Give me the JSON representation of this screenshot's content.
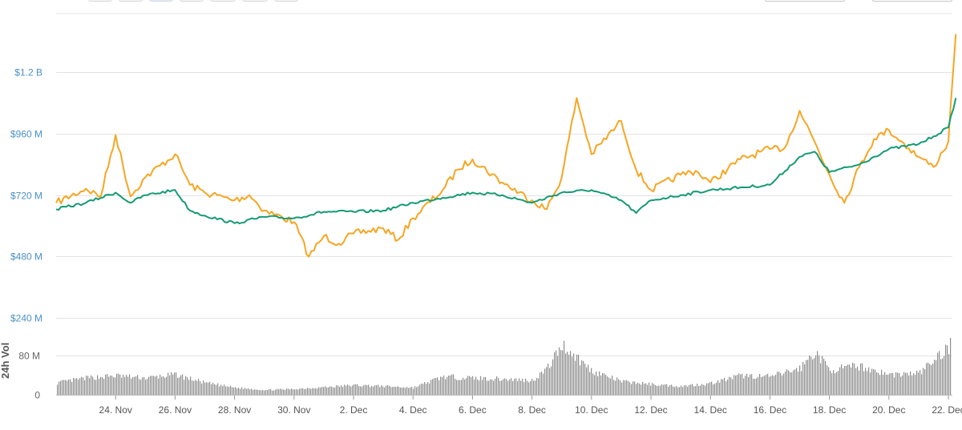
{
  "toolbar": {
    "range_buttons": [
      "",
      "",
      "",
      "",
      "",
      "",
      ""
    ],
    "active_index": 2,
    "date_from": "",
    "date_to": ""
  },
  "colors": {
    "series_orange": "#f5a623",
    "series_green": "#159a73",
    "volume_bar": "#8e8e8e",
    "grid": "#e3e3e3",
    "y_axis_text": "#4a90c8"
  },
  "chart_data": {
    "type": "line",
    "x_tick_labels": [
      "24. Nov",
      "26. Nov",
      "28. Nov",
      "30. Nov",
      "2. Dec",
      "4. Dec",
      "6. Dec",
      "8. Dec",
      "10. Dec",
      "12. Dec",
      "14. Dec",
      "16. Dec",
      "18. Dec",
      "20. Dec",
      "22. Dec"
    ],
    "x_range": [
      "2017-11-22",
      "2017-12-22"
    ],
    "y_tick_labels": [
      "$240 M",
      "$480 M",
      "$720 M",
      "$960 M",
      "$1.2 B"
    ],
    "y_ticks": [
      240,
      480,
      720,
      960,
      1200
    ],
    "ylim": [
      240,
      1430
    ],
    "y_unit": "M",
    "series": [
      {
        "color": "#f5a623",
        "x": [
          "2017-11-22",
          "2017-11-23",
          "2017-11-23T12:00",
          "2017-11-24",
          "2017-11-24T12:00",
          "2017-11-25",
          "2017-11-26",
          "2017-11-26T12:00",
          "2017-11-27",
          "2017-11-28",
          "2017-11-28T12:00",
          "2017-11-29",
          "2017-11-30",
          "2017-11-30T12:00",
          "2017-12-01",
          "2017-12-01T12:00",
          "2017-12-02",
          "2017-12-03",
          "2017-12-03T12:00",
          "2017-12-04",
          "2017-12-05",
          "2017-12-05T12:00",
          "2017-12-06",
          "2017-12-07",
          "2017-12-08",
          "2017-12-08T12:00",
          "2017-12-09",
          "2017-12-09T12:00",
          "2017-12-10",
          "2017-12-11",
          "2017-12-11T12:00",
          "2017-12-12",
          "2017-12-13",
          "2017-12-13T12:00",
          "2017-12-14",
          "2017-12-15",
          "2017-12-16",
          "2017-12-16T12:00",
          "2017-12-17",
          "2017-12-17T12:00",
          "2017-12-18",
          "2017-12-18T12:00",
          "2017-12-19",
          "2017-12-19T12:00",
          "2017-12-20",
          "2017-12-21",
          "2017-12-21T12:00",
          "2017-12-22",
          "2017-12-22T06:00"
        ],
        "values": [
          690,
          745,
          715,
          955,
          715,
          790,
          880,
          760,
          730,
          700,
          720,
          660,
          615,
          480,
          560,
          530,
          570,
          590,
          545,
          630,
          740,
          820,
          860,
          770,
          700,
          665,
          790,
          1100,
          880,
          1010,
          820,
          740,
          800,
          815,
          770,
          860,
          900,
          905,
          1050,
          930,
          800,
          690,
          830,
          940,
          975,
          870,
          830,
          930,
          1350
        ]
      },
      {
        "color": "#159a73",
        "x": [
          "2017-11-22",
          "2017-11-23",
          "2017-11-24",
          "2017-11-24T12:00",
          "2017-11-25",
          "2017-11-26",
          "2017-11-26T12:00",
          "2017-11-27",
          "2017-11-28",
          "2017-11-29",
          "2017-11-30",
          "2017-12-01",
          "2017-12-02",
          "2017-12-03",
          "2017-12-04",
          "2017-12-05",
          "2017-12-06",
          "2017-12-07",
          "2017-12-08",
          "2017-12-09",
          "2017-12-10",
          "2017-12-11",
          "2017-12-11T12:00",
          "2017-12-12",
          "2017-12-13",
          "2017-12-14",
          "2017-12-15",
          "2017-12-16",
          "2017-12-17",
          "2017-12-17T12:00",
          "2017-12-18",
          "2017-12-19",
          "2017-12-19T12:00",
          "2017-12-20",
          "2017-12-21",
          "2017-12-21T12:00",
          "2017-12-22",
          "2017-12-22T06:00"
        ],
        "values": [
          665,
          690,
          730,
          690,
          720,
          740,
          660,
          640,
          610,
          635,
          630,
          655,
          655,
          660,
          690,
          710,
          730,
          720,
          690,
          730,
          740,
          700,
          650,
          700,
          720,
          740,
          750,
          760,
          870,
          890,
          810,
          840,
          870,
          900,
          920,
          950,
          985,
          1100
        ]
      }
    ],
    "volume": {
      "ylabel": "24h Vol",
      "y_tick_labels": [
        "0",
        "80 M"
      ],
      "y_ticks": [
        0,
        80
      ],
      "ylim": [
        0,
        135
      ],
      "x": [
        "2017-11-22",
        "2017-11-23",
        "2017-11-24",
        "2017-11-25",
        "2017-11-26",
        "2017-11-27",
        "2017-11-28",
        "2017-11-29",
        "2017-11-30",
        "2017-12-01",
        "2017-12-02",
        "2017-12-03",
        "2017-12-04",
        "2017-12-05",
        "2017-12-06",
        "2017-12-07",
        "2017-12-08",
        "2017-12-08T12:00",
        "2017-12-09",
        "2017-12-10",
        "2017-12-11",
        "2017-12-12",
        "2017-12-13",
        "2017-12-14",
        "2017-12-15",
        "2017-12-16",
        "2017-12-17",
        "2017-12-17T12:00",
        "2017-12-18",
        "2017-12-19",
        "2017-12-20",
        "2017-12-21",
        "2017-12-22",
        "2017-12-22T06:00"
      ],
      "values": [
        25,
        35,
        40,
        35,
        42,
        25,
        15,
        10,
        12,
        16,
        20,
        18,
        15,
        38,
        35,
        33,
        30,
        55,
        105,
        50,
        28,
        22,
        18,
        24,
        40,
        38,
        55,
        90,
        52,
        60,
        42,
        45,
        100,
        125
      ]
    }
  }
}
